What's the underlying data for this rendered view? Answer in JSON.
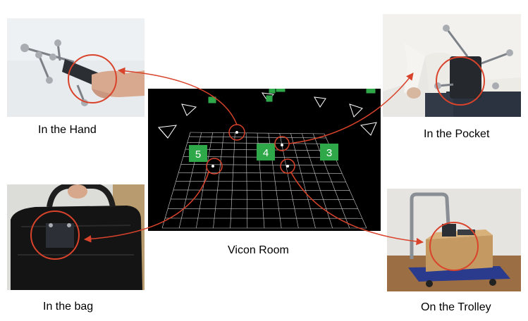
{
  "captions": {
    "hand": "In the Hand",
    "pocket": "In the Pocket",
    "vicon": "Vicon Room",
    "bag": "In the bag",
    "trolley": "On the Trolley"
  },
  "vicon_markers": {
    "left": "5",
    "center": "4",
    "right": "3"
  },
  "colors": {
    "arrow": "#d9432b",
    "grid": "#d0d0d0",
    "camera": "#ffffff",
    "marker_green": "#2fa84a"
  }
}
